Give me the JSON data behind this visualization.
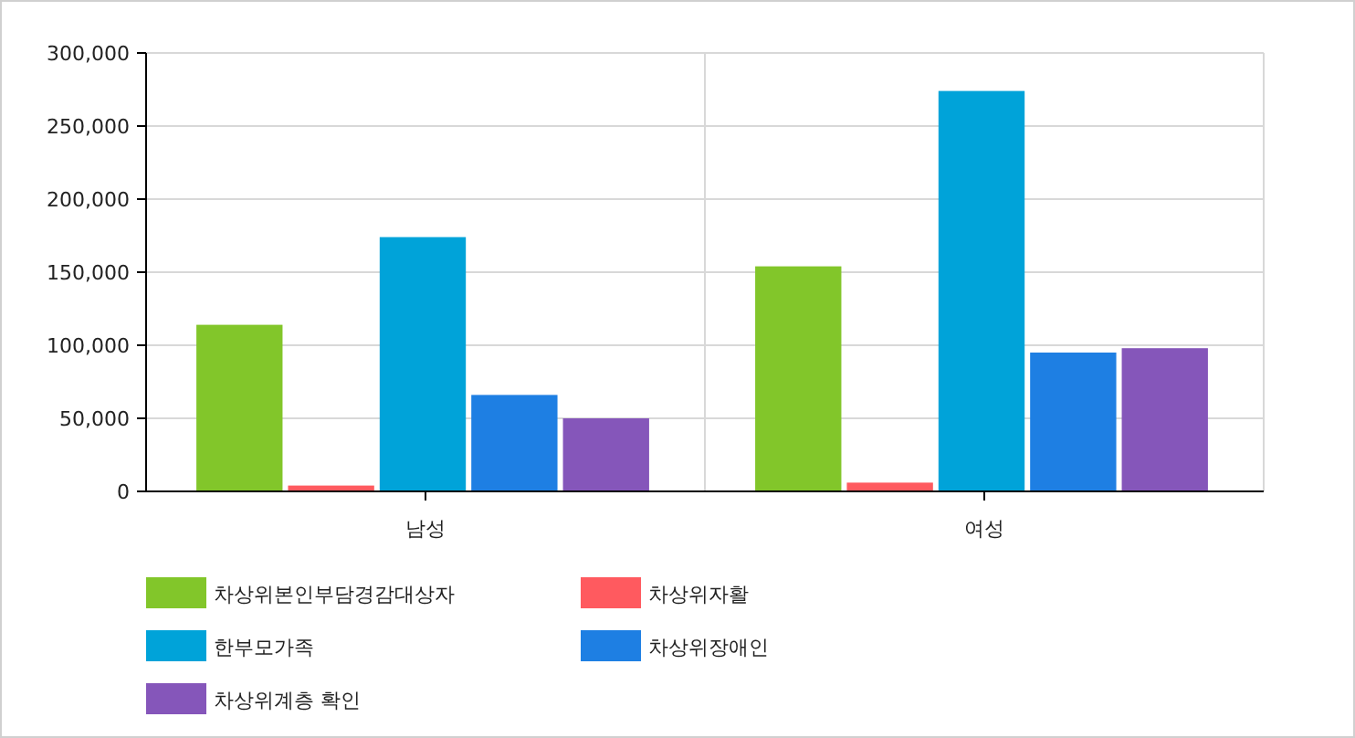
{
  "chart_data": {
    "type": "bar",
    "categories": [
      "남성",
      "여성"
    ],
    "series": [
      {
        "name": "차상위본인부담경감대상자",
        "color": "#82c62a",
        "values": [
          114000,
          154000
        ]
      },
      {
        "name": "차상위자활",
        "color": "#ff5a5f",
        "values": [
          4000,
          6000
        ]
      },
      {
        "name": "한부모가족",
        "color": "#00a3d9",
        "values": [
          174000,
          274000
        ]
      },
      {
        "name": "차상위장애인",
        "color": "#1e7fe3",
        "values": [
          66000,
          95000
        ]
      },
      {
        "name": "차상위계층 확인",
        "color": "#8556ba",
        "values": [
          50000,
          98000
        ]
      }
    ],
    "ylim": [
      0,
      300000
    ],
    "yticks": [
      {
        "value": 0,
        "label": "0"
      },
      {
        "value": 50000,
        "label": "50,000"
      },
      {
        "value": 100000,
        "label": "100,000"
      },
      {
        "value": 150000,
        "label": "150,000"
      },
      {
        "value": 200000,
        "label": "200,000"
      },
      {
        "value": 250000,
        "label": "250,000"
      },
      {
        "value": 300000,
        "label": "300,000"
      }
    ],
    "grid": true,
    "legend": "bottom"
  }
}
